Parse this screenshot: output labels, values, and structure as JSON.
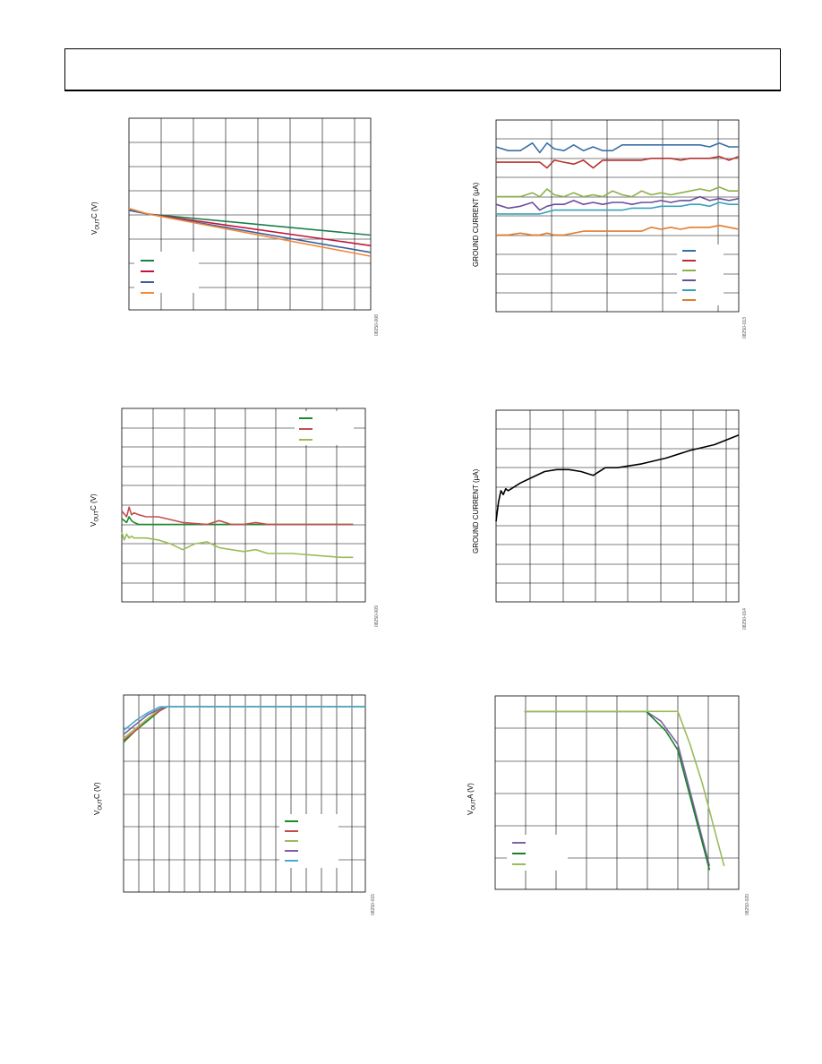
{
  "page": {
    "header_text": ""
  },
  "charts": [
    {
      "id": "c1",
      "ylabel_main": "V",
      "ylabel_sub": "OUT",
      "ylabel_rest": "C (V)",
      "figure_id": "08250-008",
      "colors": [
        "#1a7f4b",
        "#c0143c",
        "#3a5f9c",
        "#f08a3c"
      ]
    },
    {
      "id": "c2",
      "ylabel_full": "GROUND CURRENT (µA)",
      "figure_id": "08250-013",
      "colors": [
        "#3a6ea8",
        "#b8312f",
        "#8db04a",
        "#6a4c9c",
        "#3aa0b8",
        "#e07c30"
      ]
    },
    {
      "id": "c3",
      "ylabel_main": "V",
      "ylabel_sub": "OUT",
      "ylabel_rest": "C (V)",
      "figure_id": "08250-009",
      "colors": [
        "#1a8a2a",
        "#c0504d",
        "#9bbb59"
      ]
    },
    {
      "id": "c4",
      "ylabel_full": "GROUND CURRENT (µA)",
      "figure_id": "08250-014",
      "colors": [
        "#000000"
      ]
    },
    {
      "id": "c5",
      "ylabel_main": "V",
      "ylabel_sub": "OUT",
      "ylabel_rest": "C (V)",
      "figure_id": "08250-015",
      "colors": [
        "#1a8a2a",
        "#c0504d",
        "#9bbb59",
        "#7d5fa6",
        "#4aacc6"
      ]
    },
    {
      "id": "c6",
      "ylabel_main": "V",
      "ylabel_sub": "OUT",
      "ylabel_rest": "A (V)",
      "figure_id": "08250-020",
      "colors": [
        "#8064a2",
        "#1a7f2a",
        "#9bbb59"
      ]
    }
  ],
  "chart_data": [
    {
      "type": "line",
      "title": "",
      "xlabel": "",
      "ylabel": "VOUTC (V)",
      "xlim": [
        0,
        100
      ],
      "ylim": [
        0,
        100
      ],
      "grid": true,
      "legend_position": "bottom-left",
      "series": [
        {
          "x": [
            0,
            8,
            100
          ],
          "y": [
            52,
            50,
            39
          ]
        },
        {
          "x": [
            0,
            8,
            100
          ],
          "y": [
            52,
            50,
            33.5
          ]
        },
        {
          "x": [
            0,
            8,
            100
          ],
          "y": [
            52,
            50,
            30
          ]
        },
        {
          "x": [
            0,
            8,
            100
          ],
          "y": [
            53,
            50,
            28
          ]
        }
      ]
    },
    {
      "type": "line",
      "title": "",
      "xlabel": "",
      "ylabel": "GROUND CURRENT (µA)",
      "xlim": [
        0,
        100
      ],
      "ylim": [
        0,
        100
      ],
      "grid": true,
      "legend_position": "bottom-right",
      "series": [
        {
          "x": [
            0,
            5,
            10,
            15,
            18,
            21,
            24,
            28,
            32,
            36,
            40,
            44,
            48,
            52,
            56,
            60,
            64,
            68,
            72,
            76,
            80,
            84,
            88,
            92,
            96,
            100
          ],
          "y": [
            86,
            84,
            84,
            88,
            83,
            88,
            85,
            84,
            87,
            84,
            86,
            84,
            84,
            87,
            87,
            87,
            87,
            87,
            87,
            87,
            87,
            87,
            86,
            88,
            86,
            86
          ]
        },
        {
          "x": [
            0,
            5,
            10,
            15,
            18,
            21,
            24,
            28,
            32,
            36,
            40,
            44,
            48,
            52,
            56,
            60,
            64,
            68,
            72,
            76,
            80,
            84,
            88,
            92,
            96,
            100
          ],
          "y": [
            78,
            78,
            78,
            78,
            78,
            75,
            79,
            78,
            77,
            79,
            75,
            79,
            79,
            79,
            79,
            79,
            80,
            80,
            80,
            79,
            80,
            80,
            80,
            81,
            79,
            81
          ]
        },
        {
          "x": [
            0,
            5,
            10,
            15,
            18,
            21,
            24,
            28,
            32,
            36,
            40,
            44,
            48,
            52,
            56,
            60,
            64,
            68,
            72,
            76,
            80,
            84,
            88,
            92,
            96,
            100
          ],
          "y": [
            60,
            60,
            60,
            62,
            60,
            64,
            61,
            60,
            62,
            60,
            61,
            60,
            63,
            61,
            60,
            63,
            61,
            62,
            61,
            62,
            63,
            64,
            63,
            65,
            63,
            63
          ]
        },
        {
          "x": [
            0,
            5,
            10,
            15,
            18,
            21,
            24,
            28,
            32,
            36,
            40,
            44,
            48,
            52,
            56,
            60,
            64,
            68,
            72,
            76,
            80,
            84,
            88,
            92,
            96,
            100
          ],
          "y": [
            56,
            54,
            55,
            57,
            53,
            55,
            56,
            56,
            58,
            56,
            57,
            56,
            57,
            57,
            56,
            57,
            57,
            58,
            57,
            58,
            58,
            60,
            58,
            59,
            58,
            59
          ]
        },
        {
          "x": [
            0,
            5,
            10,
            15,
            18,
            21,
            24,
            28,
            32,
            36,
            40,
            44,
            48,
            52,
            56,
            60,
            64,
            68,
            72,
            76,
            80,
            84,
            88,
            92,
            96,
            100
          ],
          "y": [
            51,
            51,
            51,
            51,
            51,
            52,
            53,
            53,
            53,
            53,
            53,
            53,
            53,
            53,
            54,
            54,
            54,
            55,
            55,
            55,
            56,
            56,
            55,
            57,
            56,
            56
          ]
        },
        {
          "x": [
            0,
            5,
            10,
            15,
            18,
            21,
            24,
            28,
            32,
            36,
            40,
            44,
            48,
            52,
            56,
            60,
            64,
            68,
            72,
            76,
            80,
            84,
            88,
            92,
            96,
            100
          ],
          "y": [
            40,
            40,
            41,
            40,
            40,
            41,
            40,
            40,
            41,
            42,
            42,
            42,
            42,
            42,
            42,
            42,
            44,
            43,
            44,
            43,
            44,
            44,
            44,
            45,
            44,
            43
          ]
        }
      ]
    },
    {
      "type": "line",
      "title": "",
      "xlabel": "",
      "ylabel": "VOUTC (V)",
      "xlim": [
        0,
        100
      ],
      "ylim": [
        0,
        100
      ],
      "grid": true,
      "legend_position": "top-right",
      "series": [
        {
          "x": [
            0,
            2,
            3,
            4,
            5,
            7,
            10,
            15,
            25,
            35,
            45,
            60,
            70,
            80,
            90,
            95
          ],
          "y": [
            43,
            41,
            44,
            42,
            41,
            40,
            40,
            40,
            40,
            40,
            40,
            40,
            40,
            40,
            40,
            40
          ]
        },
        {
          "x": [
            0,
            2,
            3,
            4,
            5,
            7,
            10,
            15,
            25,
            35,
            40,
            45,
            50,
            55,
            60,
            70,
            80,
            90,
            95
          ],
          "y": [
            47,
            44,
            49,
            45,
            46,
            45,
            44,
            44,
            41,
            40,
            42,
            40,
            40,
            41,
            40,
            40,
            40,
            40,
            40
          ]
        },
        {
          "x": [
            0,
            1,
            2,
            3,
            4,
            5,
            7,
            10,
            15,
            20,
            25,
            30,
            35,
            40,
            45,
            50,
            55,
            60,
            70,
            80,
            90,
            95
          ],
          "y": [
            36,
            32,
            35,
            33,
            34,
            33,
            33,
            33,
            32,
            30,
            27,
            30,
            31,
            28,
            27,
            26,
            27,
            25,
            25,
            24,
            23,
            23
          ]
        }
      ]
    },
    {
      "type": "line",
      "title": "",
      "xlabel": "",
      "ylabel": "GROUND CURRENT (µA)",
      "xlim": [
        0,
        100
      ],
      "ylim": [
        0,
        100
      ],
      "grid": true,
      "legend_position": "none",
      "series": [
        {
          "x": [
            0,
            1,
            2,
            3,
            4,
            5,
            10,
            15,
            20,
            25,
            30,
            35,
            40,
            45,
            50,
            55,
            60,
            70,
            80,
            90,
            100
          ],
          "y": [
            42,
            52,
            58,
            56,
            59,
            58,
            62,
            65,
            68,
            69,
            69,
            68,
            66,
            70,
            70,
            71,
            72,
            75,
            79,
            82,
            87
          ]
        }
      ]
    },
    {
      "type": "line",
      "title": "",
      "xlabel": "",
      "ylabel": "VOUTC (V)",
      "xlim": [
        0,
        100
      ],
      "ylim": [
        0,
        100
      ],
      "grid": true,
      "legend_position": "bottom-right",
      "series": [
        {
          "x": [
            0,
            5,
            10,
            15,
            18,
            20,
            100
          ],
          "y": [
            76,
            82,
            87,
            92,
            94,
            94,
            94
          ]
        },
        {
          "x": [
            0,
            5,
            10,
            15,
            18,
            20,
            100
          ],
          "y": [
            77,
            82,
            88,
            92,
            94,
            94,
            94
          ]
        },
        {
          "x": [
            0,
            5,
            10,
            15,
            18,
            20,
            100
          ],
          "y": [
            78,
            83,
            88,
            93,
            94,
            94,
            94
          ]
        },
        {
          "x": [
            0,
            5,
            10,
            15,
            18,
            20,
            100
          ],
          "y": [
            80,
            85,
            90,
            93,
            94,
            94,
            94
          ]
        },
        {
          "x": [
            0,
            5,
            10,
            15,
            18,
            20,
            100
          ],
          "y": [
            82,
            87,
            91,
            94,
            94,
            94,
            94
          ]
        }
      ]
    },
    {
      "type": "line",
      "title": "",
      "xlabel": "",
      "ylabel": "VOUTA (V)",
      "xlim": [
        0,
        100
      ],
      "ylim": [
        0,
        100
      ],
      "grid": true,
      "legend_position": "bottom-left",
      "series": [
        {
          "x": [
            12,
            62,
            68,
            75,
            88
          ],
          "y": [
            92,
            92,
            87,
            75,
            12
          ]
        },
        {
          "x": [
            12,
            62,
            70,
            75,
            88
          ],
          "y": [
            92,
            92,
            82,
            72,
            10
          ]
        },
        {
          "x": [
            12,
            75,
            80,
            85,
            94
          ],
          "y": [
            92,
            92,
            75,
            55,
            12
          ]
        }
      ]
    }
  ]
}
